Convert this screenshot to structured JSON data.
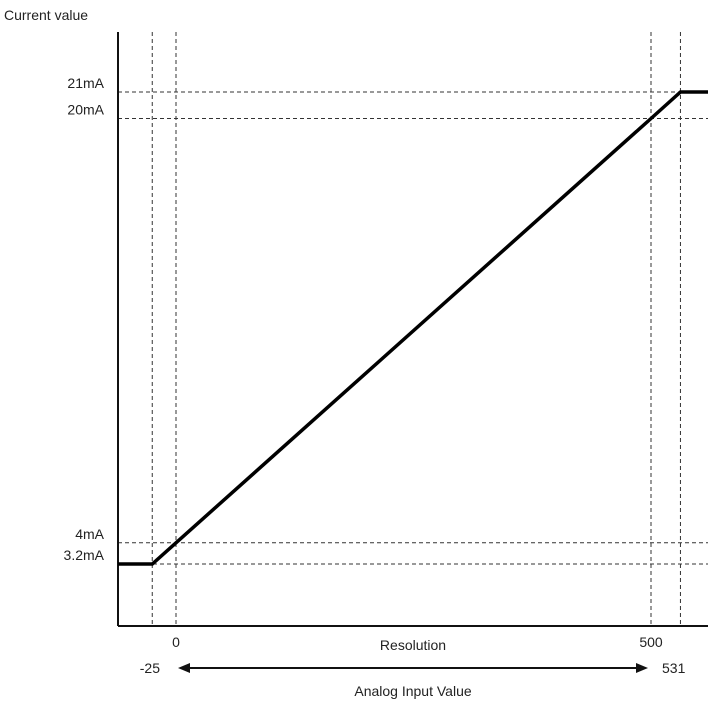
{
  "chart_data": {
    "type": "line",
    "ylabel": "Current value",
    "y_unit": "mA",
    "xlabel_top": "Resolution",
    "xlabel_bottom": "Analog Input Value",
    "x_range": [
      -25,
      531
    ],
    "y_range": [
      3.2,
      21
    ],
    "x_ticks": [
      {
        "value": 0,
        "label": "0"
      },
      {
        "value": 500,
        "label": "500"
      }
    ],
    "y_ticks": [
      {
        "value": 21,
        "label": "21mA"
      },
      {
        "value": 20,
        "label": "20mA"
      },
      {
        "value": 4,
        "label": "4mA"
      },
      {
        "value": 3.2,
        "label": "3.2mA"
      }
    ],
    "x_guides": [
      -25,
      0,
      500,
      531
    ],
    "y_guides": [
      21,
      20,
      4,
      3.2
    ],
    "range_labels": {
      "left": "-25",
      "right": "531"
    },
    "series": [
      {
        "x": [
          -25,
          0,
          500,
          531
        ],
        "y": [
          3.2,
          4,
          20,
          21
        ]
      }
    ]
  }
}
